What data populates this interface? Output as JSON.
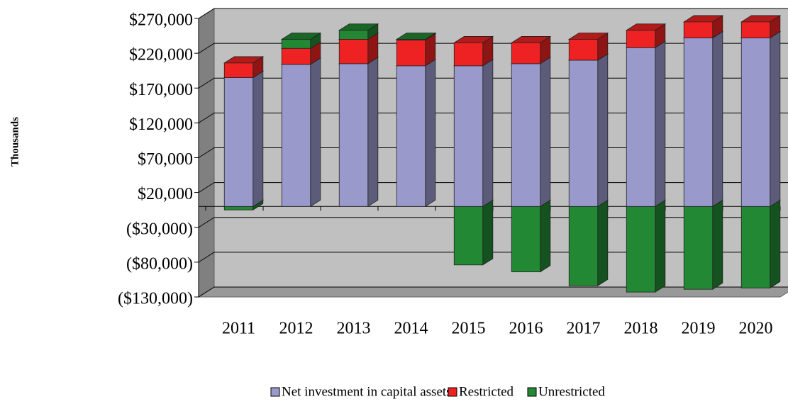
{
  "chart_data": {
    "type": "bar3d_stacked",
    "y_axis_label": "Thousands",
    "categories": [
      "2011",
      "2012",
      "2013",
      "2014",
      "2015",
      "2016",
      "2017",
      "2018",
      "2019",
      "2020"
    ],
    "series": [
      {
        "name": "Net investment in capital assets",
        "color": "#9999cc",
        "values": [
          185000,
          204000,
          205000,
          202000,
          202000,
          205000,
          210000,
          228000,
          242000,
          242000
        ]
      },
      {
        "name": "Restricted",
        "color": "#ee2222",
        "values": [
          21000,
          23000,
          35000,
          37000,
          33000,
          30000,
          30000,
          25000,
          23000,
          23000
        ]
      },
      {
        "name": "Unrestricted",
        "color": "#228833",
        "values": [
          -5000,
          13000,
          13000,
          1000,
          -84000,
          -94000,
          -114000,
          -123000,
          -119000,
          -117000
        ]
      }
    ],
    "ylim": [
      -130000,
      270000
    ],
    "yticks": [
      {
        "value": -130000,
        "label": "($130,000)"
      },
      {
        "value": -80000,
        "label": "($80,000)"
      },
      {
        "value": -30000,
        "label": "($30,000)"
      },
      {
        "value": 20000,
        "label": "$20,000"
      },
      {
        "value": 70000,
        "label": "$70,000"
      },
      {
        "value": 120000,
        "label": "$120,000"
      },
      {
        "value": 170000,
        "label": "$170,000"
      },
      {
        "value": 220000,
        "label": "$220,000"
      },
      {
        "value": 270000,
        "label": "$270,000"
      }
    ],
    "grid": true,
    "legend": "bottom"
  }
}
